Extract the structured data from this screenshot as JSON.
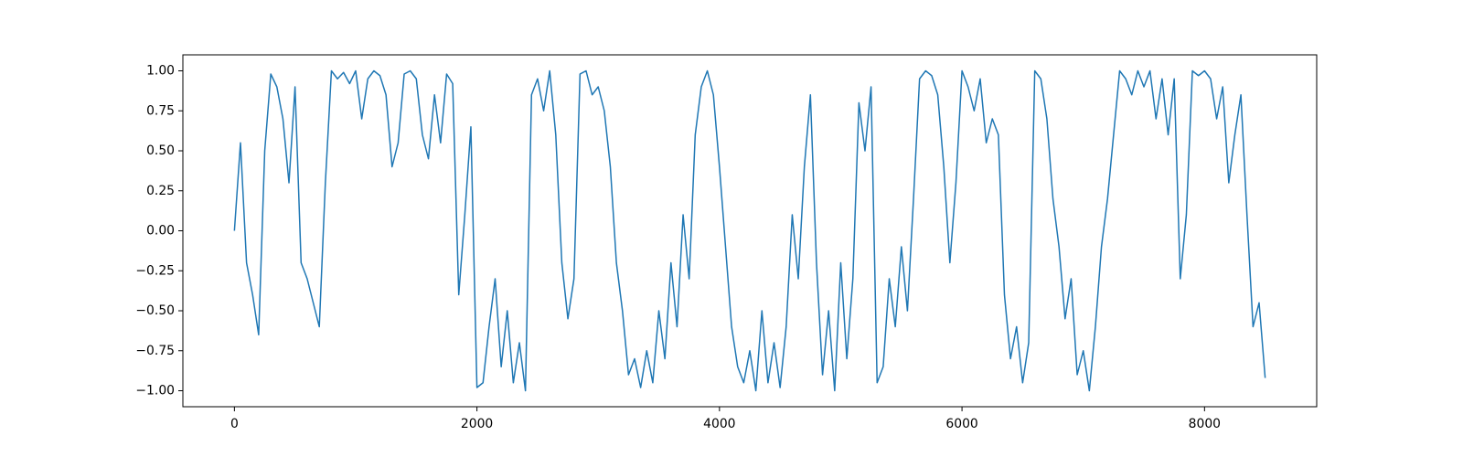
{
  "chart_data": {
    "type": "line",
    "x": [
      0,
      50,
      100,
      150,
      200,
      250,
      300,
      350,
      400,
      450,
      500,
      550,
      600,
      650,
      700,
      750,
      800,
      850,
      900,
      950,
      1000,
      1050,
      1100,
      1150,
      1200,
      1250,
      1300,
      1350,
      1400,
      1450,
      1500,
      1550,
      1600,
      1650,
      1700,
      1750,
      1800,
      1850,
      1900,
      1950,
      2000,
      2050,
      2100,
      2150,
      2200,
      2250,
      2300,
      2350,
      2400,
      2450,
      2500,
      2550,
      2600,
      2650,
      2700,
      2750,
      2800,
      2850,
      2900,
      2950,
      3000,
      3050,
      3100,
      3150,
      3200,
      3250,
      3300,
      3350,
      3400,
      3450,
      3500,
      3550,
      3600,
      3650,
      3700,
      3750,
      3800,
      3850,
      3900,
      3950,
      4000,
      4050,
      4100,
      4150,
      4200,
      4250,
      4300,
      4350,
      4400,
      4450,
      4500,
      4550,
      4600,
      4650,
      4700,
      4750,
      4800,
      4850,
      4900,
      4950,
      5000,
      5050,
      5100,
      5150,
      5200,
      5250,
      5300,
      5350,
      5400,
      5450,
      5500,
      5550,
      5600,
      5650,
      5700,
      5750,
      5800,
      5850,
      5900,
      5950,
      6000,
      6050,
      6100,
      6150,
      6200,
      6250,
      6300,
      6350,
      6400,
      6450,
      6500,
      6550,
      6600,
      6650,
      6700,
      6750,
      6800,
      6850,
      6900,
      6950,
      7000,
      7050,
      7100,
      7150,
      7200,
      7250,
      7300,
      7350,
      7400,
      7450,
      7500,
      7550,
      7600,
      7650,
      7700,
      7750,
      7800,
      7850,
      7900,
      7950,
      8000,
      8050,
      8100,
      8150,
      8200,
      8250,
      8300,
      8350,
      8400,
      8450,
      8500
    ],
    "series": [
      {
        "color": "#1f77b4",
        "values": [
          0.0,
          0.55,
          -0.2,
          -0.4,
          -0.65,
          0.5,
          0.98,
          0.9,
          0.7,
          0.3,
          0.9,
          -0.2,
          -0.3,
          -0.45,
          -0.6,
          0.3,
          1.0,
          0.95,
          0.99,
          0.92,
          1.0,
          0.7,
          0.95,
          1.0,
          0.97,
          0.85,
          0.4,
          0.55,
          0.98,
          1.0,
          0.95,
          0.6,
          0.45,
          0.85,
          0.55,
          0.98,
          0.92,
          -0.4,
          0.1,
          0.65,
          -0.98,
          -0.95,
          -0.6,
          -0.3,
          -0.85,
          -0.5,
          -0.95,
          -0.7,
          -1.0,
          0.85,
          0.95,
          0.75,
          1.0,
          0.6,
          -0.2,
          -0.55,
          -0.3,
          0.98,
          1.0,
          0.85,
          0.9,
          0.75,
          0.4,
          -0.2,
          -0.5,
          -0.9,
          -0.8,
          -0.98,
          -0.75,
          -0.95,
          -0.5,
          -0.8,
          -0.2,
          -0.6,
          0.1,
          -0.3,
          0.6,
          0.9,
          1.0,
          0.85,
          0.4,
          -0.1,
          -0.6,
          -0.85,
          -0.95,
          -0.75,
          -1.0,
          -0.5,
          -0.95,
          -0.7,
          -0.98,
          -0.6,
          0.1,
          -0.3,
          0.4,
          0.85,
          -0.2,
          -0.9,
          -0.5,
          -1.0,
          -0.2,
          -0.8,
          -0.3,
          0.8,
          0.5,
          0.9,
          -0.95,
          -0.85,
          -0.3,
          -0.6,
          -0.1,
          -0.5,
          0.2,
          0.95,
          1.0,
          0.97,
          0.85,
          0.4,
          -0.2,
          0.3,
          1.0,
          0.9,
          0.75,
          0.95,
          0.55,
          0.7,
          0.6,
          -0.4,
          -0.8,
          -0.6,
          -0.95,
          -0.7,
          1.0,
          0.95,
          0.7,
          0.2,
          -0.1,
          -0.55,
          -0.3,
          -0.9,
          -0.75,
          -1.0,
          -0.6,
          -0.1,
          0.2,
          0.6,
          1.0,
          0.95,
          0.85,
          1.0,
          0.9,
          1.0,
          0.7,
          0.95,
          0.6,
          0.95,
          -0.3,
          0.1,
          1.0,
          0.97,
          1.0,
          0.95,
          0.7,
          0.9,
          0.3,
          0.6,
          0.85,
          0.1,
          -0.6,
          -0.45,
          -0.92
        ]
      }
    ],
    "xlim": [
      -425,
      8925
    ],
    "ylim": [
      -1.1,
      1.1
    ],
    "xticks": [
      0,
      2000,
      4000,
      6000,
      8000
    ],
    "yticks": [
      {
        "value": -1,
        "label": "−1.00"
      },
      {
        "value": -0.75,
        "label": "−0.75"
      },
      {
        "value": -0.5,
        "label": "−0.50"
      },
      {
        "value": -0.25,
        "label": "−0.25"
      },
      {
        "value": 0,
        "label": "0.00"
      },
      {
        "value": 0.25,
        "label": "0.25"
      },
      {
        "value": 0.5,
        "label": "0.50"
      },
      {
        "value": 0.75,
        "label": "0.75"
      },
      {
        "value": 1,
        "label": "1.00"
      }
    ],
    "grid": false
  }
}
